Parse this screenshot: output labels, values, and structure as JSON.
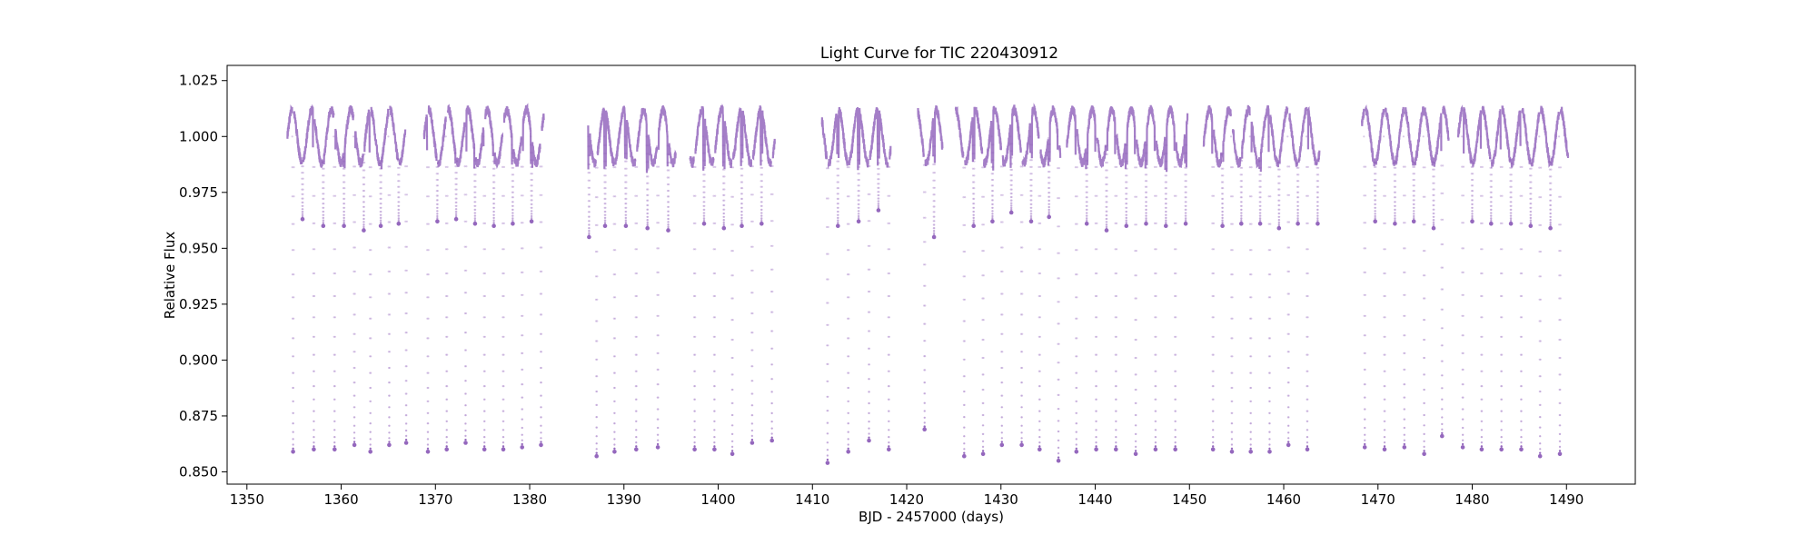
{
  "chart_data": {
    "type": "scatter",
    "title": "Light Curve for TIC 220430912",
    "xlabel": "BJD - 2457000 (days)",
    "ylabel": "Relative Flux",
    "xlim": [
      1347.9,
      1497.3
    ],
    "ylim": [
      0.8445,
      1.0318
    ],
    "xticks": [
      1350,
      1360,
      1370,
      1380,
      1390,
      1400,
      1410,
      1420,
      1430,
      1440,
      1450,
      1460,
      1470,
      1480,
      1490
    ],
    "yticks": [
      0.85,
      0.875,
      0.9,
      0.925,
      0.95,
      0.975,
      1.0,
      1.025
    ],
    "xtick_labels": [
      "1350",
      "1360",
      "1370",
      "1380",
      "1390",
      "1400",
      "1410",
      "1420",
      "1430",
      "1440",
      "1450",
      "1460",
      "1470",
      "1480",
      "1490"
    ],
    "ytick_labels": [
      "0.850",
      "0.875",
      "0.900",
      "0.925",
      "0.950",
      "0.975",
      "1.000",
      "1.025"
    ],
    "grid": false,
    "legend": "none",
    "series": [
      {
        "color": "#9467bd",
        "description_free": true,
        "data_segments": [
          [
            1354.3,
            1367.0
          ],
          [
            1368.8,
            1381.5
          ],
          [
            1386.2,
            1395.5
          ],
          [
            1397.0,
            1406.0
          ],
          [
            1411.0,
            1418.3
          ],
          [
            1421.2,
            1423.8
          ],
          [
            1425.2,
            1436.3
          ],
          [
            1437.0,
            1449.8
          ],
          [
            1451.5,
            1463.8
          ],
          [
            1468.3,
            1477.5
          ],
          [
            1478.5,
            1490.2
          ]
        ],
        "primary_eclipses": [
          [
            1354.9,
            0.859
          ],
          [
            1357.1,
            0.86
          ],
          [
            1359.3,
            0.86
          ],
          [
            1361.4,
            0.862
          ],
          [
            1363.1,
            0.859
          ],
          [
            1365.1,
            0.862
          ],
          [
            1366.9,
            0.863
          ],
          [
            1369.2,
            0.859
          ],
          [
            1371.2,
            0.86
          ],
          [
            1373.2,
            0.863
          ],
          [
            1375.2,
            0.86
          ],
          [
            1377.2,
            0.86
          ],
          [
            1379.2,
            0.861
          ],
          [
            1381.2,
            0.862
          ],
          [
            1387.1,
            0.857
          ],
          [
            1389.0,
            0.859
          ],
          [
            1391.3,
            0.86
          ],
          [
            1393.6,
            0.861
          ],
          [
            1397.5,
            0.86
          ],
          [
            1399.6,
            0.86
          ],
          [
            1401.5,
            0.858
          ],
          [
            1403.6,
            0.863
          ],
          [
            1405.7,
            0.864
          ],
          [
            1411.6,
            0.854
          ],
          [
            1413.8,
            0.859
          ],
          [
            1416.0,
            0.864
          ],
          [
            1418.1,
            0.86
          ],
          [
            1421.9,
            0.869
          ],
          [
            1426.1,
            0.857
          ],
          [
            1428.1,
            0.858
          ],
          [
            1430.1,
            0.862
          ],
          [
            1432.2,
            0.862
          ],
          [
            1434.1,
            0.86
          ],
          [
            1436.1,
            0.855
          ],
          [
            1438.0,
            0.859
          ],
          [
            1440.1,
            0.86
          ],
          [
            1442.2,
            0.86
          ],
          [
            1444.3,
            0.858
          ],
          [
            1446.4,
            0.86
          ],
          [
            1448.5,
            0.86
          ],
          [
            1452.5,
            0.86
          ],
          [
            1454.5,
            0.859
          ],
          [
            1456.5,
            0.859
          ],
          [
            1458.5,
            0.859
          ],
          [
            1460.5,
            0.862
          ],
          [
            1462.5,
            0.86
          ],
          [
            1468.6,
            0.861
          ],
          [
            1470.7,
            0.86
          ],
          [
            1472.8,
            0.861
          ],
          [
            1474.9,
            0.858
          ],
          [
            1476.8,
            0.866
          ],
          [
            1479.0,
            0.861
          ],
          [
            1481.0,
            0.86
          ],
          [
            1483.1,
            0.86
          ],
          [
            1485.2,
            0.86
          ],
          [
            1487.2,
            0.857
          ],
          [
            1489.3,
            0.858
          ]
        ],
        "secondary_eclipses": [
          [
            1355.9,
            0.963
          ],
          [
            1358.1,
            0.96
          ],
          [
            1360.3,
            0.96
          ],
          [
            1362.4,
            0.958
          ],
          [
            1364.2,
            0.96
          ],
          [
            1366.1,
            0.961
          ],
          [
            1370.2,
            0.962
          ],
          [
            1372.2,
            0.963
          ],
          [
            1374.2,
            0.961
          ],
          [
            1376.2,
            0.96
          ],
          [
            1378.2,
            0.961
          ],
          [
            1380.2,
            0.962
          ],
          [
            1386.3,
            0.955
          ],
          [
            1388.0,
            0.96
          ],
          [
            1390.2,
            0.96
          ],
          [
            1392.5,
            0.959
          ],
          [
            1394.7,
            0.958
          ],
          [
            1398.5,
            0.961
          ],
          [
            1400.6,
            0.959
          ],
          [
            1402.5,
            0.96
          ],
          [
            1404.6,
            0.961
          ],
          [
            1412.7,
            0.96
          ],
          [
            1414.9,
            0.962
          ],
          [
            1417.0,
            0.967
          ],
          [
            1422.9,
            0.955
          ],
          [
            1425.1,
            0.959
          ],
          [
            1427.1,
            0.96
          ],
          [
            1429.1,
            0.962
          ],
          [
            1431.1,
            0.966
          ],
          [
            1433.2,
            0.962
          ],
          [
            1435.1,
            0.964
          ],
          [
            1439.1,
            0.961
          ],
          [
            1441.2,
            0.958
          ],
          [
            1443.3,
            0.96
          ],
          [
            1445.4,
            0.961
          ],
          [
            1447.5,
            0.96
          ],
          [
            1449.6,
            0.961
          ],
          [
            1453.5,
            0.96
          ],
          [
            1455.5,
            0.961
          ],
          [
            1457.5,
            0.961
          ],
          [
            1459.5,
            0.959
          ],
          [
            1461.5,
            0.961
          ],
          [
            1463.6,
            0.961
          ],
          [
            1469.7,
            0.962
          ],
          [
            1471.8,
            0.961
          ],
          [
            1473.8,
            0.962
          ],
          [
            1475.9,
            0.959
          ],
          [
            1480.0,
            0.962
          ],
          [
            1482.0,
            0.961
          ],
          [
            1484.1,
            0.961
          ],
          [
            1486.2,
            0.96
          ],
          [
            1488.3,
            0.959
          ]
        ]
      }
    ]
  }
}
